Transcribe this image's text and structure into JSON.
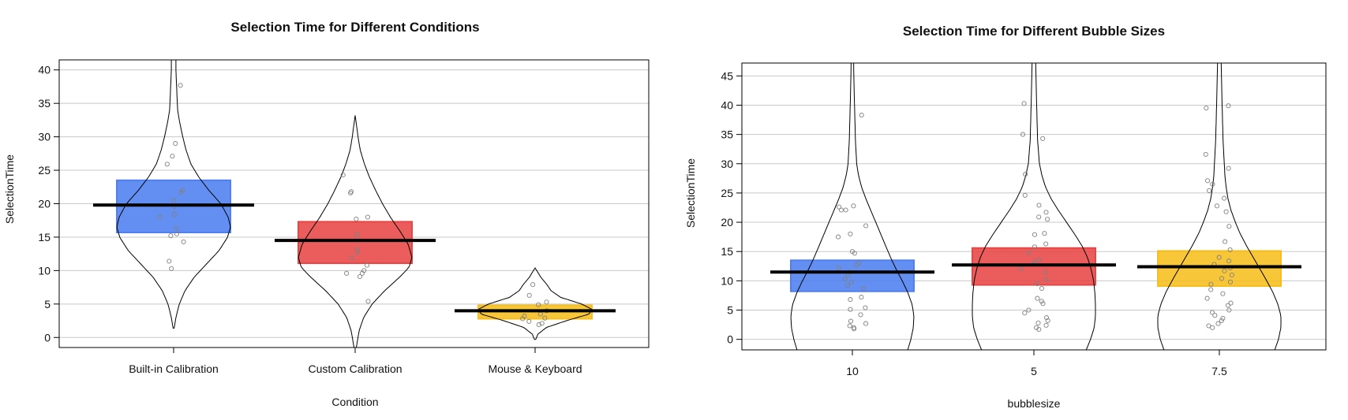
{
  "colors": {
    "blue": "#4f7ff0",
    "red": "#e84545",
    "yellow": "#f6be1e",
    "mean_line": "#000000",
    "grid": "#c8c8c8",
    "points": "#808080"
  },
  "chart_data": [
    {
      "type": "pirateplot",
      "title": "Selection Time for Different Conditions",
      "xlabel": "Condition",
      "ylabel": "SelectionTime",
      "ylim": [
        -1.5,
        41.5
      ],
      "yticks": [
        0,
        5,
        10,
        15,
        20,
        25,
        30,
        35,
        40
      ],
      "grid": true,
      "categories": [
        "Built-in Calibration",
        "Custom Calibration",
        "Mouse & Keyboard"
      ],
      "means": [
        19.8,
        14.5,
        4.0
      ],
      "ci": [
        [
          15.7,
          23.5
        ],
        [
          11.1,
          17.3
        ],
        [
          2.8,
          4.8
        ]
      ],
      "bar_colors": [
        "blue",
        "red",
        "yellow"
      ],
      "points": [
        [
          37.7,
          29.0,
          27.1,
          25.9,
          22.0,
          21.7,
          20.5,
          19.6,
          18.4,
          18.0,
          16.3,
          15.5,
          15.2,
          14.3,
          11.4,
          10.3
        ],
        [
          24.3,
          21.8,
          21.6,
          18.0,
          17.7,
          15.5,
          14.9,
          13.2,
          12.7,
          11.9,
          10.8,
          10.0,
          9.6,
          9.6,
          9.1,
          5.4
        ],
        [
          7.9,
          6.3,
          5.3,
          4.9,
          4.0,
          3.5,
          3.2,
          2.9,
          2.8,
          2.4,
          2.1,
          1.9
        ]
      ],
      "violins": [
        {
          "max": 41.5,
          "min": 1.4,
          "profile": [
            [
              1.4,
              0.01
            ],
            [
              3,
              0.04
            ],
            [
              5,
              0.1
            ],
            [
              7,
              0.2
            ],
            [
              9,
              0.36
            ],
            [
              11,
              0.58
            ],
            [
              13,
              0.8
            ],
            [
              15,
              0.95
            ],
            [
              16.5,
              1.0
            ],
            [
              18,
              0.96
            ],
            [
              20,
              0.83
            ],
            [
              22,
              0.62
            ],
            [
              24,
              0.44
            ],
            [
              26,
              0.3
            ],
            [
              28,
              0.22
            ],
            [
              30,
              0.16
            ],
            [
              32,
              0.11
            ],
            [
              34,
              0.07
            ],
            [
              36,
              0.06
            ],
            [
              38,
              0.05
            ],
            [
              40,
              0.04
            ],
            [
              41.5,
              0.04
            ]
          ]
        },
        {
          "max": 33.2,
          "min": -1.5,
          "profile": [
            [
              -1.5,
              0.02
            ],
            [
              1,
              0.07
            ],
            [
              3,
              0.15
            ],
            [
              5,
              0.3
            ],
            [
              7,
              0.52
            ],
            [
              9,
              0.78
            ],
            [
              10.5,
              0.95
            ],
            [
              12,
              1.0
            ],
            [
              14,
              0.93
            ],
            [
              16,
              0.78
            ],
            [
              18,
              0.62
            ],
            [
              20,
              0.48
            ],
            [
              22,
              0.36
            ],
            [
              24,
              0.25
            ],
            [
              26,
              0.16
            ],
            [
              28,
              0.09
            ],
            [
              30,
              0.05
            ],
            [
              32,
              0.02
            ],
            [
              33.2,
              0.0
            ]
          ]
        },
        {
          "max": 10.4,
          "min": -0.3,
          "profile": [
            [
              -0.3,
              0.01
            ],
            [
              0.5,
              0.05
            ],
            [
              1.5,
              0.2
            ],
            [
              2.5,
              0.55
            ],
            [
              3.5,
              0.95
            ],
            [
              4.2,
              1.0
            ],
            [
              5,
              0.82
            ],
            [
              6,
              0.45
            ],
            [
              7,
              0.28
            ],
            [
              8,
              0.2
            ],
            [
              9,
              0.1
            ],
            [
              10,
              0.03
            ],
            [
              10.4,
              0.0
            ]
          ]
        }
      ]
    },
    {
      "type": "pirateplot",
      "title": "Selection Time for Different Bubble Sizes",
      "xlabel": "bubblesize",
      "ylabel": "SelectionTime",
      "ylim": [
        -1.8,
        47.2
      ],
      "yticks": [
        0,
        5,
        10,
        15,
        20,
        25,
        30,
        35,
        40,
        45
      ],
      "grid": true,
      "categories": [
        "10",
        "5",
        "7.5"
      ],
      "means": [
        11.5,
        12.7,
        12.4
      ],
      "ci": [
        [
          8.2,
          13.5
        ],
        [
          9.3,
          15.6
        ],
        [
          9.1,
          15.1
        ]
      ],
      "bar_colors": [
        "blue",
        "red",
        "yellow"
      ],
      "points": [
        [
          38.3,
          22.8,
          22.6,
          22.1,
          22.1,
          19.4,
          18.0,
          17.5,
          15.0,
          14.7,
          13.0,
          12.7,
          12.2,
          11.5,
          11.0,
          10.3,
          9.8,
          9.2,
          8.7,
          7.2,
          6.8,
          5.4,
          5.1,
          4.2,
          3.1,
          2.7,
          2.3,
          2.0,
          1.8
        ],
        [
          40.3,
          35.0,
          34.3,
          28.2,
          24.6,
          22.9,
          21.7,
          20.9,
          20.5,
          18.1,
          17.9,
          16.3,
          15.8,
          14.8,
          13.6,
          13.2,
          12.9,
          12.0,
          11.4,
          10.2,
          9.5,
          8.7,
          7.0,
          6.5,
          6.1,
          5.0,
          4.5,
          3.7,
          3.2,
          2.8,
          2.4,
          2.0,
          1.7
        ],
        [
          39.9,
          39.5,
          31.6,
          29.2,
          27.1,
          26.5,
          25.4,
          24.1,
          22.8,
          21.8,
          19.3,
          16.7,
          15.3,
          14.0,
          13.4,
          12.8,
          12.2,
          11.7,
          11.0,
          10.4,
          9.8,
          9.4,
          8.5,
          7.8,
          7.0,
          6.2,
          5.8,
          5.0,
          4.6,
          4.1,
          3.6,
          3.2,
          2.7,
          2.3,
          2.0
        ]
      ],
      "violins": [
        {
          "max": 47.2,
          "min": -1.8,
          "profile": [
            [
              -1.8,
              0.9
            ],
            [
              0,
              0.95
            ],
            [
              2,
              0.99
            ],
            [
              4,
              1.0
            ],
            [
              6,
              0.97
            ],
            [
              8,
              0.9
            ],
            [
              10,
              0.81
            ],
            [
              12,
              0.71
            ],
            [
              14,
              0.62
            ],
            [
              16,
              0.54
            ],
            [
              18,
              0.46
            ],
            [
              20,
              0.38
            ],
            [
              22,
              0.3
            ],
            [
              24,
              0.22
            ],
            [
              26,
              0.15
            ],
            [
              28,
              0.1
            ],
            [
              30,
              0.07
            ],
            [
              34,
              0.05
            ],
            [
              38,
              0.04
            ],
            [
              42,
              0.03
            ],
            [
              47.2,
              0.02
            ]
          ]
        },
        {
          "max": 47.2,
          "min": -1.8,
          "profile": [
            [
              -1.8,
              0.85
            ],
            [
              0,
              0.92
            ],
            [
              2,
              0.98
            ],
            [
              4,
              1.0
            ],
            [
              6,
              1.0
            ],
            [
              8,
              0.99
            ],
            [
              10,
              0.97
            ],
            [
              12,
              0.93
            ],
            [
              14,
              0.87
            ],
            [
              16,
              0.78
            ],
            [
              18,
              0.66
            ],
            [
              20,
              0.53
            ],
            [
              22,
              0.4
            ],
            [
              24,
              0.28
            ],
            [
              26,
              0.19
            ],
            [
              28,
              0.13
            ],
            [
              30,
              0.09
            ],
            [
              34,
              0.06
            ],
            [
              38,
              0.05
            ],
            [
              42,
              0.04
            ],
            [
              47.2,
              0.03
            ]
          ]
        },
        {
          "max": 47.2,
          "min": -1.8,
          "profile": [
            [
              -1.8,
              0.9
            ],
            [
              0,
              0.96
            ],
            [
              2,
              1.0
            ],
            [
              4,
              1.0
            ],
            [
              6,
              0.95
            ],
            [
              8,
              0.87
            ],
            [
              10,
              0.77
            ],
            [
              12,
              0.66
            ],
            [
              14,
              0.55
            ],
            [
              16,
              0.44
            ],
            [
              18,
              0.34
            ],
            [
              20,
              0.26
            ],
            [
              22,
              0.19
            ],
            [
              24,
              0.14
            ],
            [
              26,
              0.11
            ],
            [
              28,
              0.09
            ],
            [
              30,
              0.08
            ],
            [
              34,
              0.06
            ],
            [
              38,
              0.05
            ],
            [
              42,
              0.04
            ],
            [
              47.2,
              0.03
            ]
          ]
        }
      ]
    }
  ]
}
